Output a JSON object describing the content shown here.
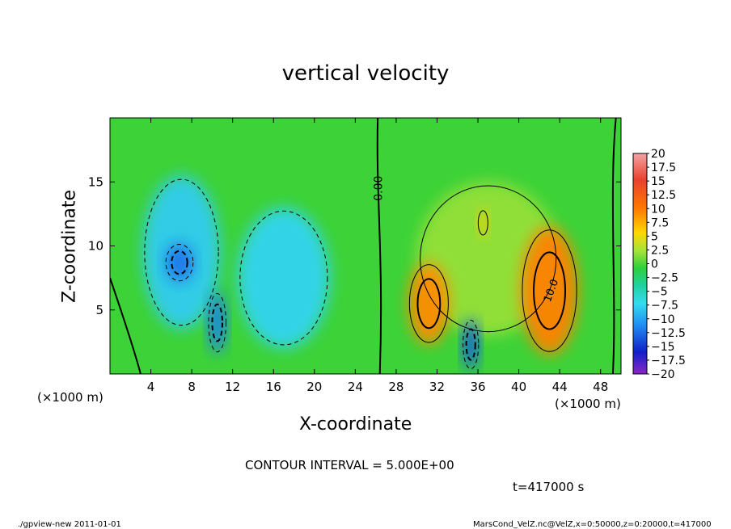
{
  "title": "vertical velocity",
  "chart_data": {
    "type": "heatmap",
    "title": "vertical velocity",
    "xlabel": "X-coordinate",
    "ylabel": "Z-coordinate",
    "x_unit": "(×1000 m)",
    "x_ticks": [
      4,
      8,
      12,
      16,
      20,
      24,
      28,
      32,
      36,
      40,
      44,
      48
    ],
    "y_ticks": [
      5,
      10,
      15
    ],
    "xlim": [
      0,
      50
    ],
    "ylim": [
      0,
      20
    ],
    "colorbar_ticks": [
      "20",
      "17.5",
      "15",
      "12.5",
      "10",
      "7.5",
      "5",
      "2.5",
      "0",
      "−2.5",
      "−5",
      "−7.5",
      "−10",
      "−12.5",
      "−15",
      "−17.5",
      "−20"
    ],
    "colorbar_range": [
      -20,
      20
    ],
    "contour_label": "0.00",
    "contour_label_2": "10.0",
    "contour_interval": "CONTOUR INTERVAL = 5.000E+00",
    "time": "t=417000 s",
    "cells": [
      {
        "x": 7,
        "z": 9.5,
        "rx": 3.8,
        "rz": 6,
        "v": -6
      },
      {
        "x": 6.8,
        "z": 8.7,
        "rx": 1.4,
        "rz": 1.5,
        "v": -11
      },
      {
        "x": 10.5,
        "z": 4,
        "rx": 0.9,
        "rz": 2.4,
        "v": -10.5
      },
      {
        "x": 17,
        "z": 7.5,
        "rx": 4.5,
        "rz": 5.5,
        "v": -5.5
      },
      {
        "x": 31.2,
        "z": 5.5,
        "rx": 2,
        "rz": 3.2,
        "v": 11
      },
      {
        "x": 36.5,
        "z": 11.8,
        "rx": 0.5,
        "rz": 1,
        "v": 8
      },
      {
        "x": 35.3,
        "z": 2.3,
        "rx": 0.8,
        "rz": 2,
        "v": -12
      },
      {
        "x": 43,
        "z": 6.5,
        "rx": 2.8,
        "rz": 5,
        "v": 11.5
      },
      {
        "x": 37,
        "z": 9,
        "rx": 7,
        "rz": 6,
        "v": 4
      }
    ]
  },
  "footer": {
    "left": "./gpview-new   2011-01-01",
    "right": "MarsCond_VelZ.nc@VelZ,x=0:50000,z=0:20000,t=417000"
  },
  "colors": {
    "background_field": "#33d133",
    "axis": "#000000"
  }
}
